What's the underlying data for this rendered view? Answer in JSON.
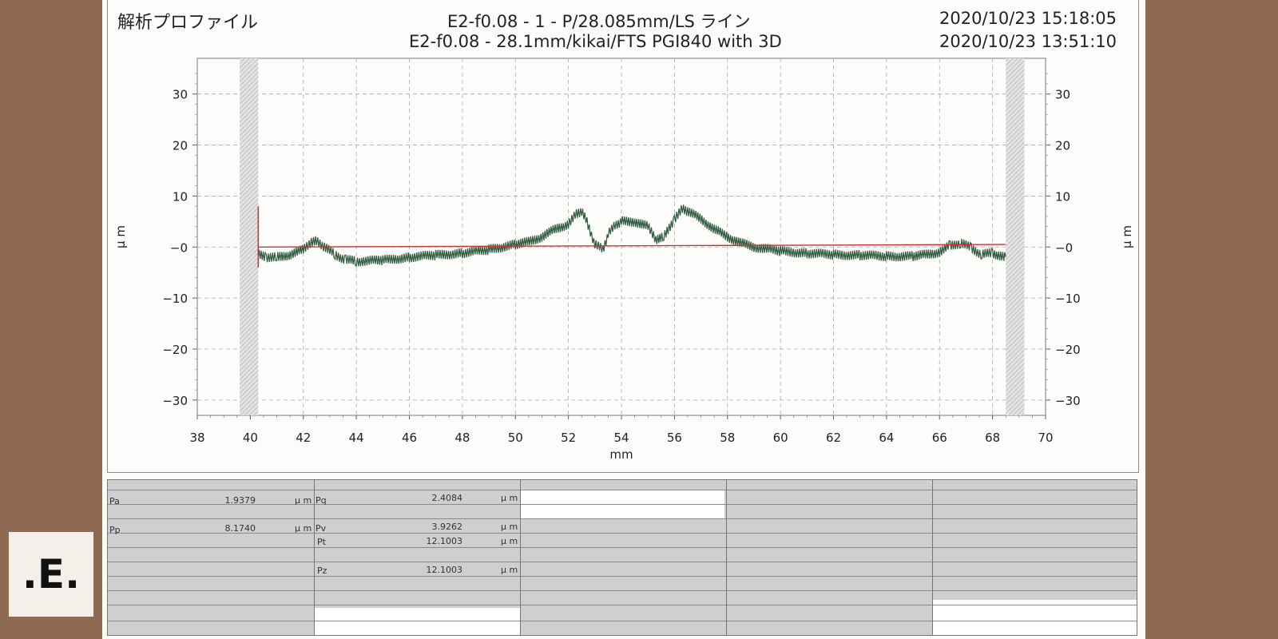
{
  "header": {
    "title": "解析プロファイル",
    "line1": "E2-f0.08 - 1 - P/28.085mm/LS ライン",
    "line2": "E2-f0.08 - 28.1mm/kikai/FTS PGI840 with 3D",
    "date1": "2020/10/23 15:18:05",
    "date2": "2020/10/23 13:51:10"
  },
  "chart_data": {
    "type": "line",
    "xlabel": "mm",
    "ylabel": "μ m",
    "xlim": [
      38,
      70
    ],
    "ylim": [
      -33,
      37
    ],
    "x_ticks": [
      38,
      40,
      42,
      44,
      46,
      48,
      50,
      52,
      54,
      56,
      58,
      60,
      62,
      64,
      66,
      68,
      70
    ],
    "y_ticks": [
      30,
      20,
      10,
      0,
      -10,
      -20,
      -30
    ],
    "grid": true,
    "hatched_regions": [
      [
        39.6,
        40.3
      ],
      [
        68.5,
        69.2
      ]
    ],
    "series": [
      {
        "color": "#2f5a3e",
        "x": [
          40.3,
          40.6,
          41.0,
          41.5,
          42.0,
          42.3,
          42.5,
          42.8,
          43.2,
          43.6,
          44.0,
          45.0,
          46.0,
          47.0,
          48.0,
          49.0,
          50.0,
          50.5,
          51.0,
          51.5,
          52.0,
          52.3,
          52.5,
          52.7,
          53.0,
          53.3,
          53.5,
          53.8,
          54.0,
          54.5,
          55.0,
          55.3,
          55.6,
          56.0,
          56.3,
          56.5,
          57.0,
          57.5,
          58.0,
          58.5,
          59.0,
          60.0,
          61.0,
          62.0,
          63.0,
          64.0,
          65.0,
          65.5,
          66.0,
          66.4,
          66.8,
          67.2,
          67.6,
          68.0,
          68.5
        ],
        "y": [
          -1.5,
          -2.0,
          -2.0,
          -1.5,
          -0.5,
          1.0,
          1.2,
          0.0,
          -1.5,
          -2.5,
          -2.8,
          -2.6,
          -2.0,
          -1.6,
          -1.2,
          -0.5,
          0.5,
          1.0,
          2.0,
          3.5,
          4.5,
          6.5,
          7.0,
          5.0,
          0.5,
          -0.5,
          2.5,
          4.5,
          5.0,
          5.0,
          4.0,
          1.5,
          2.0,
          5.5,
          7.5,
          7.0,
          5.5,
          3.5,
          2.0,
          0.8,
          0.0,
          -0.8,
          -1.2,
          -1.5,
          -1.6,
          -1.8,
          -1.8,
          -1.5,
          -1.0,
          0.3,
          0.8,
          -0.2,
          -1.5,
          -1.2,
          -2.0
        ]
      },
      {
        "color": "#cc3333",
        "x": [
          40.3,
          68.5
        ],
        "y": [
          0.0,
          0.5
        ]
      }
    ],
    "marker": {
      "x": 40.3,
      "y_top": 8,
      "y_bottom": -4,
      "color": "#cc3333"
    }
  },
  "results": {
    "rows": [
      {
        "label": "Pa",
        "value": "1.9379",
        "unit": "μ m",
        "label2": "Pq",
        "value2": "2.4084",
        "unit2": "μ m"
      },
      {
        "label": "Pp",
        "value": "8.1740",
        "unit": "μ m",
        "label2": "Pv",
        "value2": "3.9262",
        "unit2": "μ m"
      },
      {
        "label": "",
        "value": "",
        "unit": "",
        "label2": "Pt",
        "value2": "12.1003",
        "unit2": "μ m"
      },
      {
        "label": "",
        "value": "",
        "unit": "",
        "label2": "Pz",
        "value2": "12.1003",
        "unit2": "μ m"
      }
    ]
  },
  "logo": {
    "text": ".E."
  },
  "colors": {
    "background": "#8e6a52",
    "trace": "#2f5a3e",
    "reference": "#cc3333"
  }
}
